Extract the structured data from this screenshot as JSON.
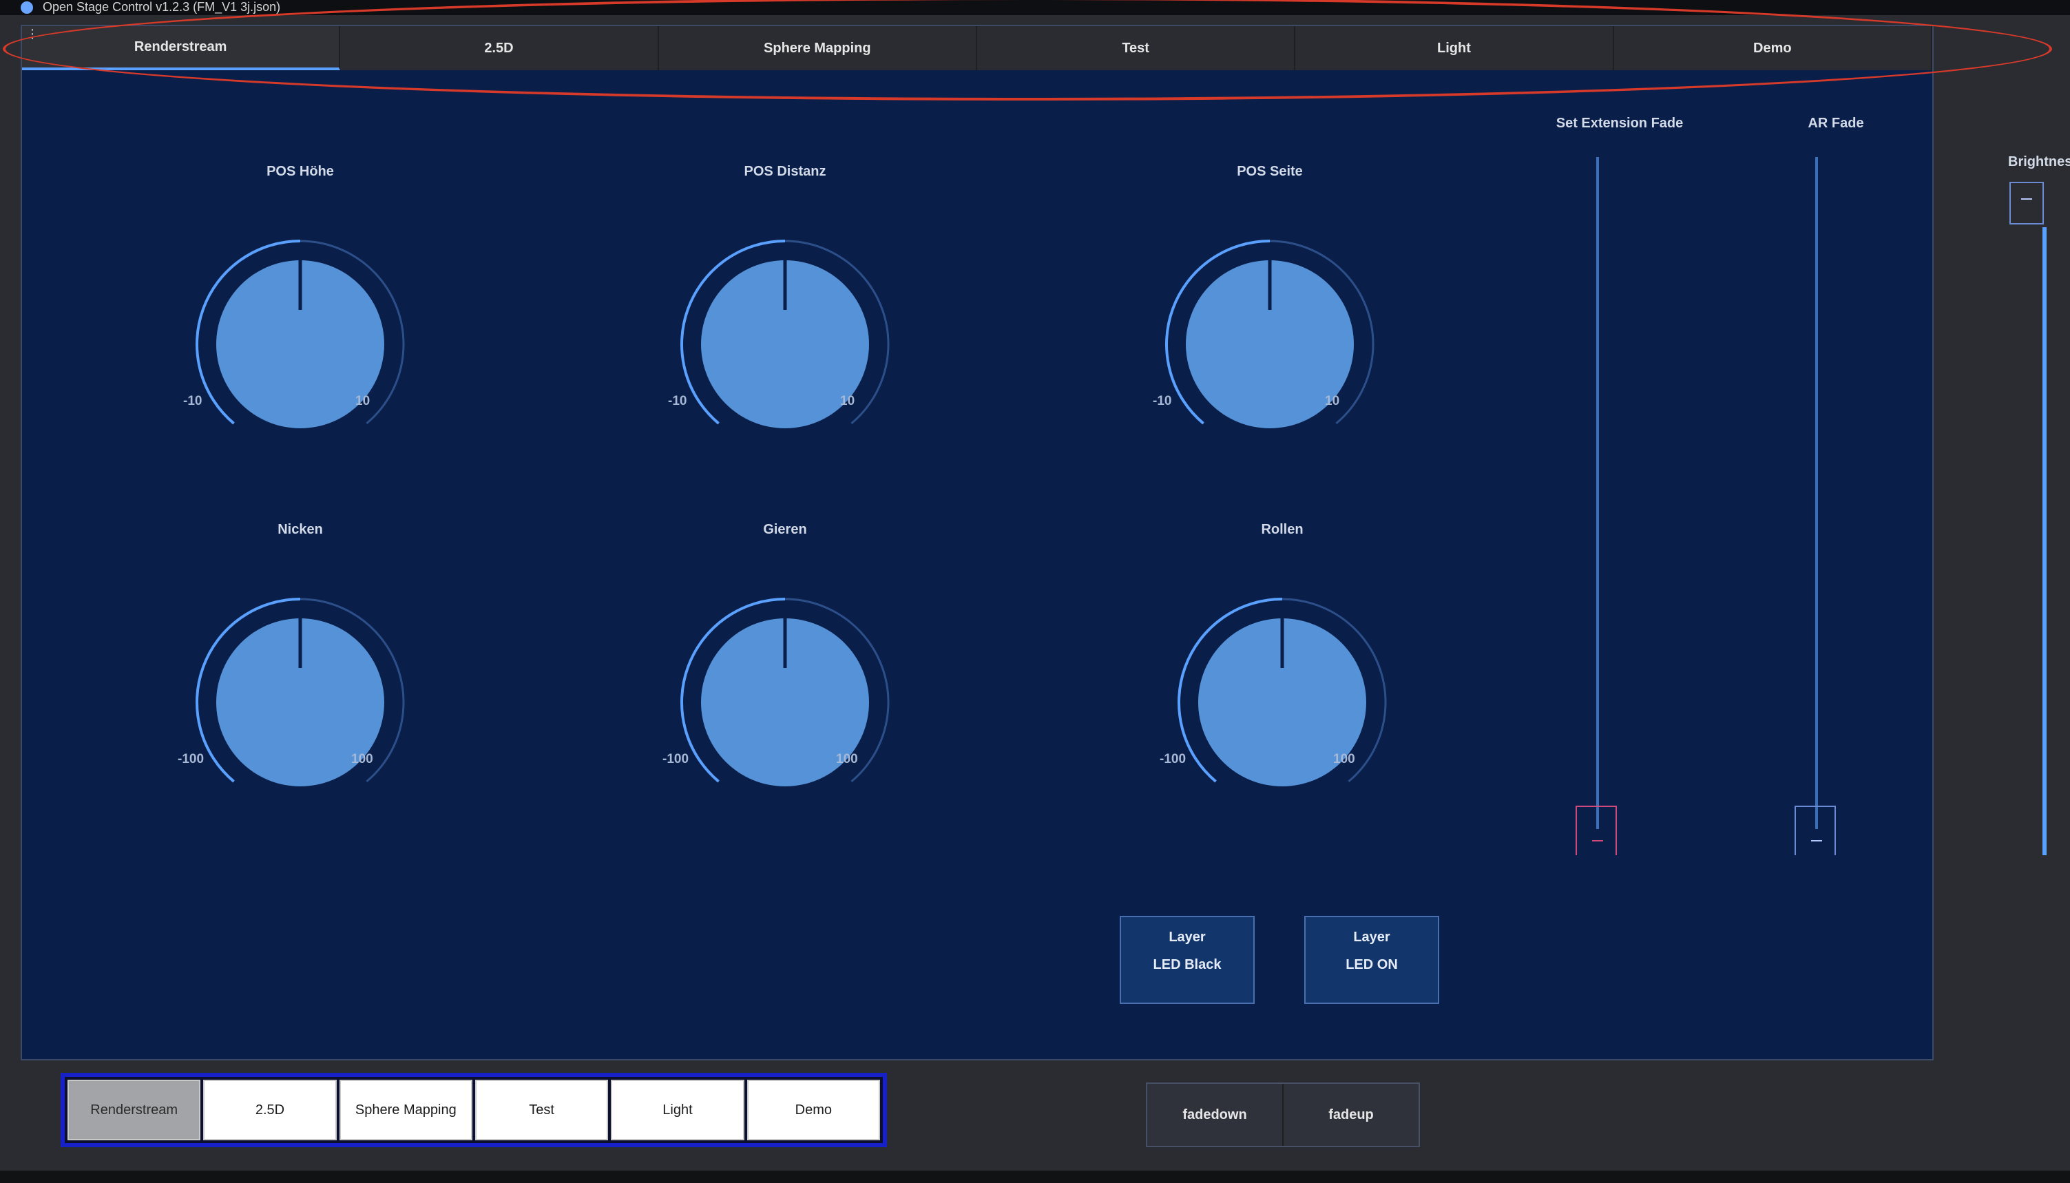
{
  "window": {
    "title": "Open Stage Control v1.2.3 (FM_V1 3j.json)"
  },
  "tabs": [
    {
      "label": "Renderstream",
      "active": true
    },
    {
      "label": "2.5D",
      "active": false
    },
    {
      "label": "Sphere Mapping",
      "active": false
    },
    {
      "label": "Test",
      "active": false
    },
    {
      "label": "Light",
      "active": false
    },
    {
      "label": "Demo",
      "active": false
    }
  ],
  "knobs": [
    {
      "label": "POS Höhe",
      "min": "-10",
      "max": "10",
      "value": 0
    },
    {
      "label": "POS Distanz",
      "min": "-10",
      "max": "10",
      "value": 0
    },
    {
      "label": "POS Seite",
      "min": "-10",
      "max": "10",
      "value": 0
    },
    {
      "label": "Nicken",
      "min": "-100",
      "max": "100",
      "value": 0
    },
    {
      "label": "Gieren",
      "min": "-100",
      "max": "100",
      "value": 0
    },
    {
      "label": "Rollen",
      "min": "-100",
      "max": "100",
      "value": 0
    }
  ],
  "faders": {
    "set_extension_label": "Set Extension Fade",
    "ar_label": "AR Fade",
    "brightness_label": "Brightness"
  },
  "layer_buttons": [
    {
      "line1": "Layer",
      "line2": "LED Black"
    },
    {
      "line1": "Layer",
      "line2": "LED ON"
    }
  ],
  "bottom_tabs": [
    {
      "label": "Renderstream",
      "active": true
    },
    {
      "label": "2.5D",
      "active": false
    },
    {
      "label": "Sphere Mapping",
      "active": false
    },
    {
      "label": "Test",
      "active": false
    },
    {
      "label": "Light",
      "active": false
    },
    {
      "label": "Demo",
      "active": false
    }
  ],
  "fade_buttons": {
    "down": "fadedown",
    "up": "fadeup"
  },
  "colors": {
    "panel_bg": "#0a1e4a",
    "knob_fill": "#5592d8",
    "accent": "#5aa0ff",
    "annotation_red": "#d83a2a"
  }
}
